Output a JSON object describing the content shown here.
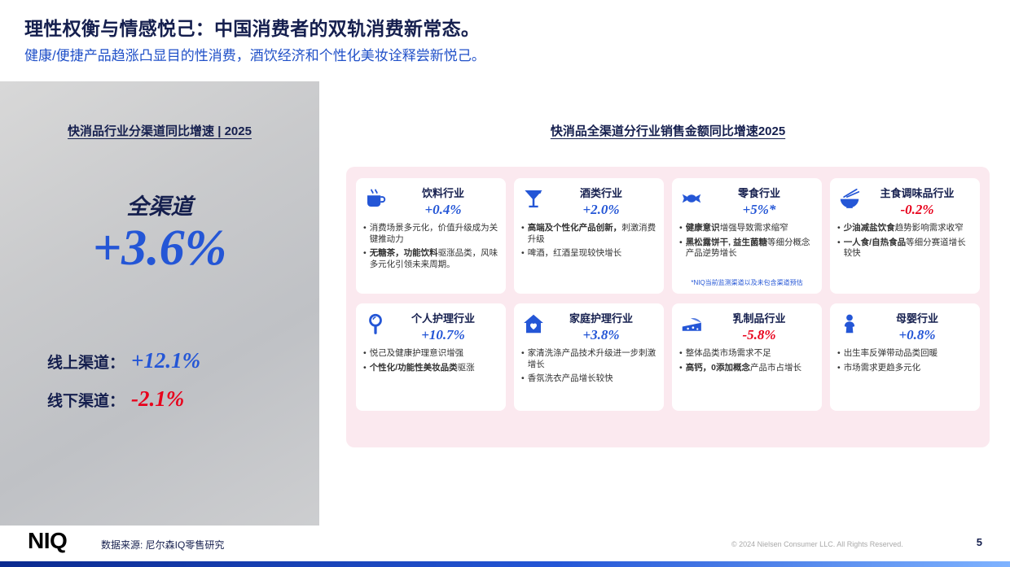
{
  "header": {
    "title": "理性权衡与情感悦己：中国消费者的双轨消费新常态。",
    "subtitle": "健康/便捷产品趋涨凸显目的性消费，酒饮经济和个性化美妆诠释尝新悦己。"
  },
  "left_panel": {
    "heading": "快消品行业分渠道同比增速 | 2025",
    "omni_label": "全渠道",
    "omni_value": "+3.6%",
    "rows": [
      {
        "label": "线上渠道：",
        "value": "+12.1%",
        "color": "#2456d6"
      },
      {
        "label": "线下渠道：",
        "value": "-2.1%",
        "color": "#e8001b"
      }
    ]
  },
  "right_panel": {
    "heading": "快消品全渠道分行业销售金额同比增速2025",
    "cards": [
      {
        "icon": "coffee-cup-icon",
        "title": "饮料行业",
        "value": "+0.4%",
        "value_color": "#2456d6",
        "bullets": [
          {
            "b": "",
            "t": "消费场景多元化，价值升级成为关键推动力"
          },
          {
            "b": "无糖茶，功能饮料",
            "t": "驱涨品类，风味多元化引领未来周期。"
          }
        ],
        "footnote": ""
      },
      {
        "icon": "cocktail-icon",
        "title": "酒类行业",
        "value": "+2.0%",
        "value_color": "#2456d6",
        "bullets": [
          {
            "b": "高端及个性化产品创新，",
            "t": "刺激消费升级"
          },
          {
            "b": "",
            "t": "啤酒，红酒呈现较快增长"
          }
        ],
        "footnote": ""
      },
      {
        "icon": "candy-icon",
        "title": "零食行业",
        "value": "+5%*",
        "value_color": "#2456d6",
        "bullets": [
          {
            "b": "健康意识",
            "t": "增强导致需求缩窄"
          },
          {
            "b": "黑松露饼干, 益生菌糖",
            "t": "等细分概念产品逆势增长"
          }
        ],
        "footnote": "*NIQ当前监测渠道以及未包含渠道预估"
      },
      {
        "icon": "noodle-bowl-icon",
        "title": "主食调味品行业",
        "value": "-0.2%",
        "value_color": "#e8001b",
        "bullets": [
          {
            "b": "少油减盐饮食",
            "t": "趋势影响需求收窄"
          },
          {
            "b": "一人食/自热食品",
            "t": "等细分赛道增长较快"
          }
        ],
        "footnote": ""
      },
      {
        "icon": "hand-mirror-icon",
        "title": "个人护理行业",
        "value": "+10.7%",
        "value_color": "#2456d6",
        "bullets": [
          {
            "b": "",
            "t": "悦己及健康护理意识增强"
          },
          {
            "b": "个性化/功能性美妆品类",
            "t": "驱涨"
          }
        ],
        "footnote": ""
      },
      {
        "icon": "house-heart-icon",
        "title": "家庭护理行业",
        "value": "+3.8%",
        "value_color": "#2456d6",
        "bullets": [
          {
            "b": "",
            "t": "家清洗涤产品技术升级进一步刺激增长"
          },
          {
            "b": "",
            "t": "香氛洗衣产品增长较快"
          }
        ],
        "footnote": ""
      },
      {
        "icon": "cheese-icon",
        "title": "乳制品行业",
        "value": "-5.8%",
        "value_color": "#e8001b",
        "bullets": [
          {
            "b": "",
            "t": "整体品类市场需求不足"
          },
          {
            "b": "高钙，0添加概念",
            "t": "产品市占增长"
          }
        ],
        "footnote": ""
      },
      {
        "icon": "baby-icon",
        "title": "母婴行业",
        "value": "+0.8%",
        "value_color": "#2456d6",
        "bullets": [
          {
            "b": "",
            "t": "出生率反弹带动品类回暖"
          },
          {
            "b": "",
            "t": "市场需求更趋多元化"
          }
        ],
        "footnote": ""
      }
    ]
  },
  "footer": {
    "logo": "NIQ",
    "source": "数据来源: 尼尔森IQ零售研究",
    "copyright": "© 2024 Nielsen Consumer LLC. All Rights Reserved.",
    "page": "5"
  },
  "colors": {
    "navy": "#151f4e",
    "blue": "#2456d6",
    "red": "#e8001b",
    "pink_panel": "#fbe9ef",
    "gray_panel": "#c9cacc"
  }
}
